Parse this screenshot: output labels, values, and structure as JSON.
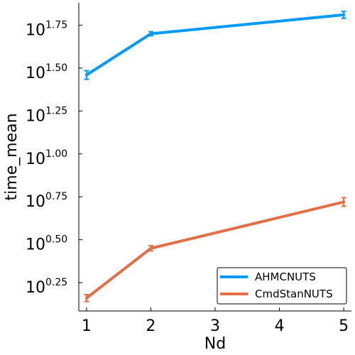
{
  "chart_data": {
    "type": "line",
    "title": "",
    "xlabel": "Nd",
    "ylabel": "time_mean",
    "y_scale": "log10",
    "x_ticks": [
      1,
      2,
      3,
      4,
      5
    ],
    "x_tick_labels": [
      "1",
      "2",
      "3",
      "4",
      "5"
    ],
    "y_ticks": [
      0.25,
      0.5,
      0.75,
      1.0,
      1.25,
      1.5,
      1.75
    ],
    "y_tick_base": "10",
    "y_tick_exponents": [
      "0.25",
      "0.50",
      "0.75",
      "1.00",
      "1.25",
      "1.50",
      "1.75"
    ],
    "xlim": [
      0.88,
      5.12
    ],
    "ylim_log10": [
      0.085,
      1.88
    ],
    "grid": false,
    "legend_position": "bottom-right",
    "series": [
      {
        "name": "AHMCNUTS",
        "color": "#009af9",
        "x": [
          1,
          2,
          5
        ],
        "log10_y": [
          1.46,
          1.7,
          1.81
        ],
        "log10_err": [
          0.025,
          0.012,
          0.02
        ]
      },
      {
        "name": "CmdStanNUTS",
        "color": "#e26f46",
        "x": [
          1,
          2,
          5
        ],
        "log10_y": [
          0.16,
          0.45,
          0.72
        ],
        "log10_err": [
          0.02,
          0.015,
          0.025
        ]
      }
    ]
  }
}
